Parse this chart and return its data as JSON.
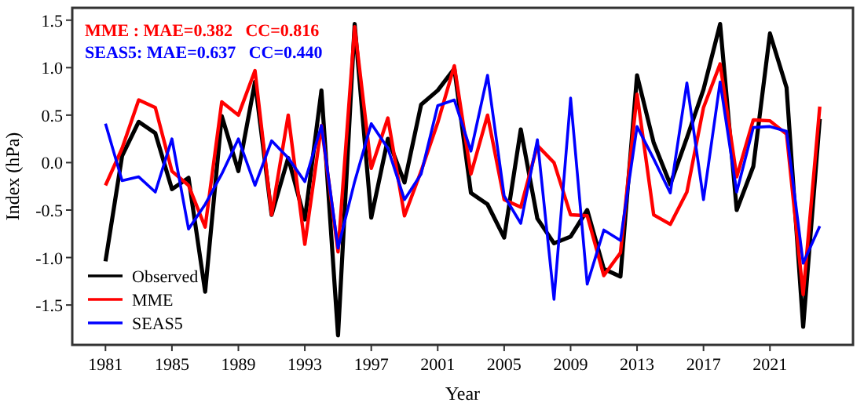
{
  "chart_data": {
    "type": "line",
    "xlabel": "Year",
    "ylabel": "Index (hPa)",
    "x": [
      1981,
      1982,
      1983,
      1984,
      1985,
      1986,
      1987,
      1988,
      1989,
      1990,
      1991,
      1992,
      1993,
      1994,
      1995,
      1996,
      1997,
      1998,
      1999,
      2000,
      2001,
      2002,
      2003,
      2004,
      2005,
      2006,
      2007,
      2008,
      2009,
      2010,
      2011,
      2012,
      2013,
      2014,
      2015,
      2016,
      2017,
      2018,
      2019,
      2020,
      2021,
      2022,
      2023,
      2024
    ],
    "series": [
      {
        "name": "Observed",
        "color": "#000000",
        "values": [
          -1.04,
          0.07,
          0.43,
          0.31,
          -0.28,
          -0.16,
          -1.36,
          0.49,
          -0.09,
          0.85,
          -0.55,
          0.05,
          -0.6,
          0.76,
          -1.82,
          1.46,
          -0.58,
          0.25,
          -0.21,
          0.61,
          0.76,
          0.99,
          -0.32,
          -0.44,
          -0.79,
          0.35,
          -0.59,
          -0.85,
          -0.78,
          -0.5,
          -1.12,
          -1.2,
          0.92,
          0.21,
          -0.23,
          0.26,
          0.77,
          1.46,
          -0.5,
          -0.04,
          1.36,
          0.79,
          -1.73,
          0.46
        ]
      },
      {
        "name": "MME",
        "color": "#ff0000",
        "values": [
          -0.24,
          0.15,
          0.66,
          0.58,
          -0.09,
          -0.24,
          -0.68,
          0.64,
          0.5,
          0.97,
          -0.55,
          0.5,
          -0.86,
          0.39,
          -0.94,
          1.43,
          -0.06,
          0.47,
          -0.56,
          -0.09,
          0.42,
          1.02,
          -0.12,
          0.5,
          -0.39,
          -0.47,
          0.18,
          0.0,
          -0.55,
          -0.56,
          -1.19,
          -0.95,
          0.72,
          -0.55,
          -0.65,
          -0.31,
          0.58,
          1.04,
          -0.15,
          0.45,
          0.44,
          0.3,
          -1.39,
          0.59
        ]
      },
      {
        "name": "SEAS5",
        "color": "#0000ff",
        "values": [
          0.41,
          -0.19,
          -0.15,
          -0.31,
          0.25,
          -0.7,
          -0.44,
          -0.12,
          0.25,
          -0.24,
          0.23,
          0.05,
          -0.2,
          0.39,
          -0.9,
          -0.2,
          0.41,
          0.15,
          -0.39,
          -0.12,
          0.6,
          0.66,
          0.12,
          0.92,
          -0.35,
          -0.64,
          0.24,
          -1.44,
          0.68,
          -1.28,
          -0.71,
          -0.82,
          0.38,
          0.04,
          -0.32,
          0.84,
          -0.39,
          0.85,
          -0.31,
          0.37,
          0.38,
          0.33,
          -1.06,
          -0.67
        ]
      }
    ],
    "xlim": [
      1979,
      2026
    ],
    "xticks": [
      1981,
      1985,
      1989,
      1993,
      1997,
      2001,
      2005,
      2009,
      2013,
      2017,
      2021
    ],
    "ylim": [
      -1.92,
      1.63
    ],
    "yticks": [
      {
        "value": -1.5,
        "label": "-1.5"
      },
      {
        "value": -1.0,
        "label": "-1.0"
      },
      {
        "value": -0.5,
        "label": "-0.5"
      },
      {
        "value": 0,
        "label": "0.0"
      },
      {
        "value": 0.5,
        "label": "0.5"
      },
      {
        "value": 1.0,
        "label": "1.0"
      },
      {
        "value": 1.5,
        "label": "1.5"
      }
    ],
    "annotations": [
      "MME : MAE=0.382   CC=0.816",
      "SEAS5: MAE=0.637   CC=0.440"
    ],
    "legend": "bottom left",
    "grid": false,
    "marker": "none",
    "line_style": "solid"
  }
}
